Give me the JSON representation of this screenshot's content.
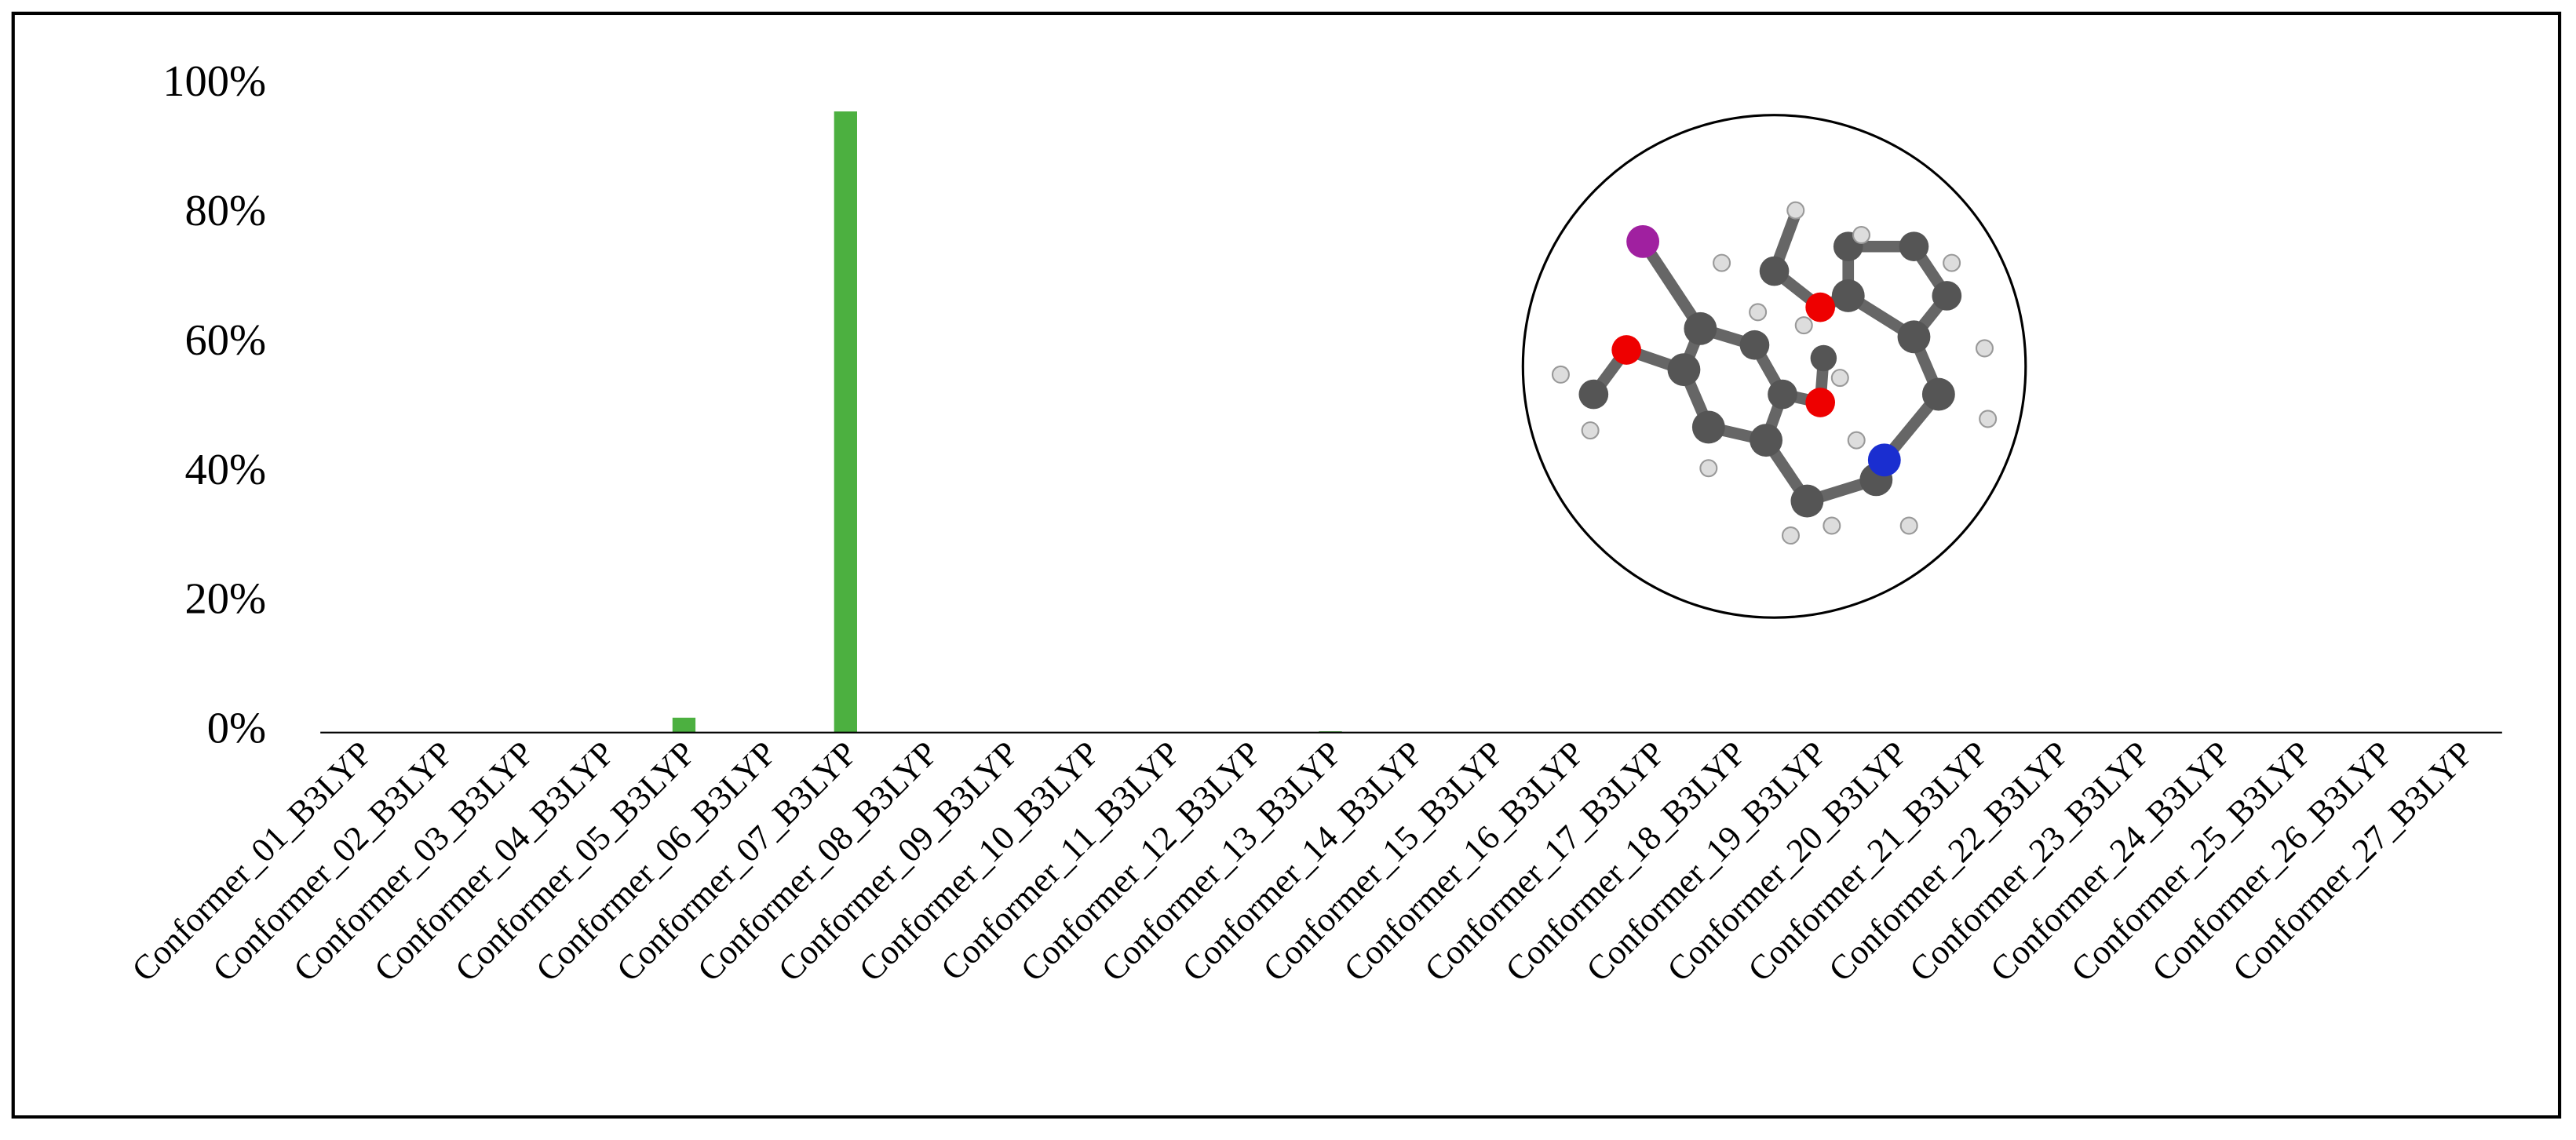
{
  "chart_data": {
    "type": "bar",
    "categories": [
      "Conformer_01_B3LYP",
      "Conformer_02_B3LYP",
      "Conformer_03_B3LYP",
      "Conformer_04_B3LYP",
      "Conformer_05_B3LYP",
      "Conformer_06_B3LYP",
      "Conformer_07_B3LYP",
      "Conformer_08_B3LYP",
      "Conformer_09_B3LYP",
      "Conformer_10_B3LYP",
      "Conformer_11_B3LYP",
      "Conformer_12_B3LYP",
      "Conformer_13_B3LYP",
      "Conformer_14_B3LYP",
      "Conformer_15_B3LYP",
      "Conformer_16_B3LYP",
      "Conformer_17_B3LYP",
      "Conformer_18_B3LYP",
      "Conformer_19_B3LYP",
      "Conformer_20_B3LYP",
      "Conformer_21_B3LYP",
      "Conformer_22_B3LYP",
      "Conformer_23_B3LYP",
      "Conformer_24_B3LYP",
      "Conformer_25_B3LYP",
      "Conformer_26_B3LYP",
      "Conformer_27_B3LYP"
    ],
    "values": [
      0,
      0,
      0,
      0,
      2.3,
      0,
      96,
      0,
      0,
      0,
      0,
      0,
      0.2,
      0,
      0,
      0,
      0,
      0,
      0,
      0,
      0,
      0,
      0,
      0,
      0,
      0,
      0
    ],
    "color": "#4cb040",
    "ylim": [
      0,
      100
    ],
    "yticks": [
      {
        "value": 0,
        "label": "0%"
      },
      {
        "value": 20,
        "label": "20%"
      },
      {
        "value": 40,
        "label": "40%"
      },
      {
        "value": 60,
        "label": "60%"
      },
      {
        "value": 80,
        "label": "80%"
      },
      {
        "value": 100,
        "label": "100%"
      }
    ],
    "grid": false
  }
}
